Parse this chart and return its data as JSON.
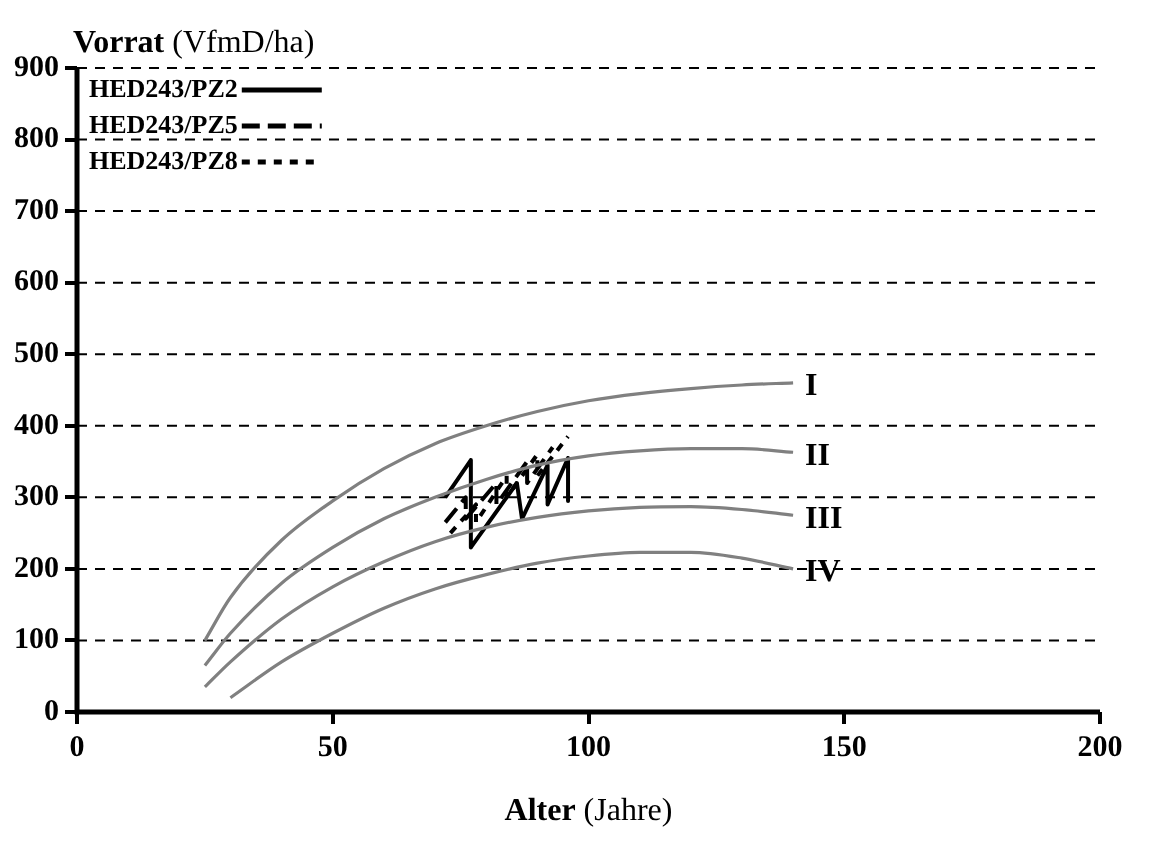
{
  "chart_data": {
    "type": "line",
    "xlabel": "Alter (Jahre)",
    "ylabel": "Vorrat (VfmD/ha)",
    "xlim": [
      0,
      200
    ],
    "xticks": [
      0,
      50,
      100,
      150,
      200
    ],
    "ylim": [
      0,
      900
    ],
    "yticks": [
      0,
      100,
      200,
      300,
      400,
      500,
      600,
      700,
      800,
      900
    ],
    "grid": "y",
    "legend": "top left",
    "marker": "none",
    "series": [
      {
        "name": "I",
        "color": "#808080",
        "x": [
          25,
          30,
          40,
          50,
          60,
          70,
          80,
          90,
          100,
          110,
          120,
          130,
          140
        ],
        "values": [
          100,
          160,
          240,
          295,
          340,
          375,
          400,
          420,
          435,
          445,
          452,
          457,
          460
        ]
      },
      {
        "name": "II",
        "color": "#808080",
        "x": [
          25,
          30,
          40,
          50,
          60,
          70,
          80,
          90,
          100,
          110,
          120,
          130,
          140
        ],
        "values": [
          65,
          110,
          180,
          230,
          270,
          300,
          325,
          345,
          358,
          365,
          368,
          368,
          363
        ]
      },
      {
        "name": "III",
        "color": "#808080",
        "x": [
          25,
          30,
          40,
          50,
          60,
          70,
          80,
          90,
          100,
          110,
          120,
          130,
          140
        ],
        "values": [
          35,
          70,
          130,
          175,
          210,
          238,
          258,
          272,
          281,
          286,
          287,
          283,
          275
        ]
      },
      {
        "name": "IV",
        "color": "#808080",
        "x": [
          30,
          40,
          50,
          60,
          70,
          80,
          90,
          100,
          110,
          120,
          130,
          140
        ],
        "values": [
          20,
          70,
          110,
          145,
          172,
          192,
          208,
          218,
          223,
          223,
          215,
          200
        ]
      },
      {
        "name": "HED243/PZ2",
        "color": "#000000",
        "line_style": "solid",
        "x": [
          72,
          77,
          77,
          86,
          87,
          92,
          92,
          96,
          96
        ],
        "values": [
          300,
          352,
          230,
          320,
          270,
          345,
          290,
          355,
          295
        ]
      },
      {
        "name": "HED243/PZ5",
        "color": "#000000",
        "line_style": "dashed",
        "x": [
          72,
          76,
          76,
          82,
          82,
          88,
          88,
          93
        ],
        "values": [
          265,
          300,
          270,
          320,
          290,
          350,
          320,
          370
        ]
      },
      {
        "name": "HED243/PZ8",
        "color": "#000000",
        "line_style": "dotted",
        "x": [
          73,
          78,
          78,
          84,
          84,
          90,
          90,
          96
        ],
        "values": [
          250,
          290,
          265,
          330,
          300,
          360,
          330,
          385
        ]
      }
    ]
  }
}
